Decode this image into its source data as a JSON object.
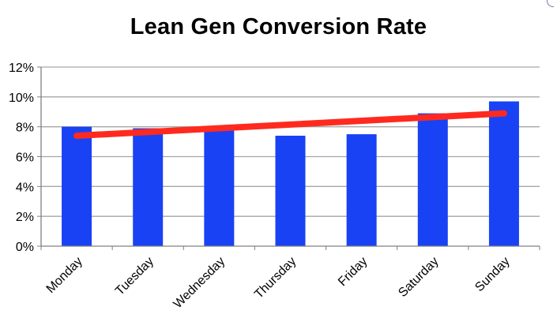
{
  "chart_data": {
    "type": "bar",
    "title": "Lean Gen Conversion Rate",
    "categories": [
      "Monday",
      "Tuesday",
      "Wednesday",
      "Thursday",
      "Friday",
      "Saturday",
      "Sunday"
    ],
    "series": [
      {
        "values": [
          8.0,
          7.9,
          7.9,
          7.4,
          7.5,
          8.9,
          9.7
        ]
      }
    ],
    "trendline": {
      "type": "linear",
      "start": 7.4,
      "end": 8.9
    },
    "ylim": [
      0,
      12
    ],
    "yticks": [
      0,
      2,
      4,
      6,
      8,
      10,
      12
    ],
    "ytick_labels": [
      "0%",
      "2%",
      "4%",
      "6%",
      "8%",
      "10%",
      "12%"
    ],
    "xlabel": "",
    "ylabel": "",
    "grid": true,
    "legend": "none",
    "colors": {
      "bar": "#1942f5",
      "trendline": "#ff2a1f",
      "grid": "#a6a6a6",
      "axis": "#808080"
    }
  }
}
